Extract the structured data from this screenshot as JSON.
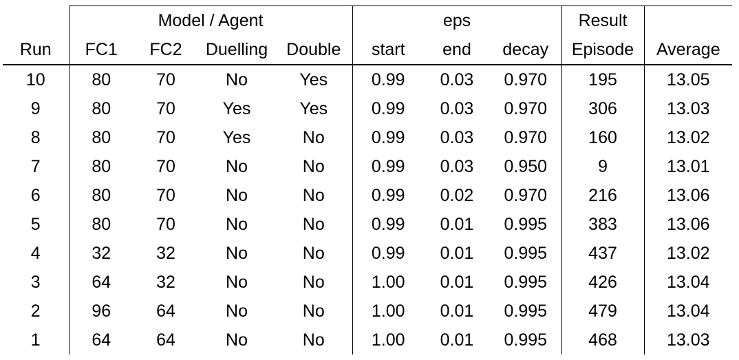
{
  "table": {
    "group_headers": {
      "model_agent": "Model / Agent",
      "eps": "eps",
      "result": "Result"
    },
    "columns": [
      "Run",
      "FC1",
      "FC2",
      "Duelling",
      "Double",
      "start",
      "end",
      "decay",
      "Episode",
      "Average"
    ],
    "rows": [
      [
        "10",
        "80",
        "70",
        "No",
        "Yes",
        "0.99",
        "0.03",
        "0.970",
        "195",
        "13.05"
      ],
      [
        "9",
        "80",
        "70",
        "Yes",
        "Yes",
        "0.99",
        "0.03",
        "0.970",
        "306",
        "13.03"
      ],
      [
        "8",
        "80",
        "70",
        "Yes",
        "No",
        "0.99",
        "0.03",
        "0.970",
        "160",
        "13.02"
      ],
      [
        "7",
        "80",
        "70",
        "No",
        "No",
        "0.99",
        "0.03",
        "0.950",
        "9",
        "13.01"
      ],
      [
        "6",
        "80",
        "70",
        "No",
        "No",
        "0.99",
        "0.02",
        "0.970",
        "216",
        "13.06"
      ],
      [
        "5",
        "80",
        "70",
        "No",
        "No",
        "0.99",
        "0.01",
        "0.995",
        "383",
        "13.06"
      ],
      [
        "4",
        "32",
        "32",
        "No",
        "No",
        "0.99",
        "0.01",
        "0.995",
        "437",
        "13.02"
      ],
      [
        "3",
        "64",
        "32",
        "No",
        "No",
        "1.00",
        "0.01",
        "0.995",
        "426",
        "13.04"
      ],
      [
        "2",
        "96",
        "64",
        "No",
        "No",
        "1.00",
        "0.01",
        "0.995",
        "479",
        "13.04"
      ],
      [
        "1",
        "64",
        "64",
        "No",
        "No",
        "1.00",
        "0.01",
        "0.995",
        "468",
        "13.03"
      ]
    ]
  }
}
